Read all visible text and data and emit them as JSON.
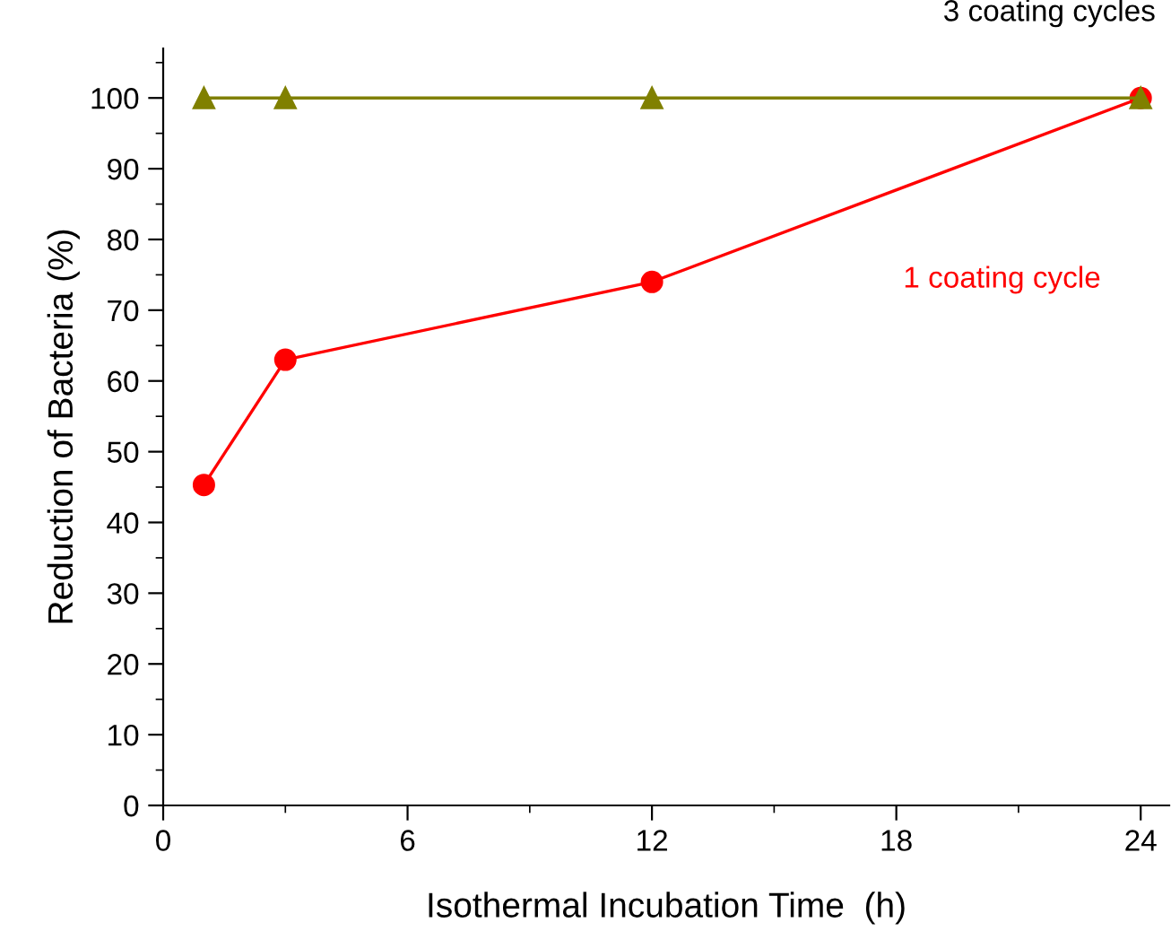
{
  "chart_data": {
    "type": "line",
    "xlabel": "Isothermal Incubation Time  (h)",
    "ylabel": "Reduction of Bacteria (%)",
    "xlim": [
      0,
      24.7
    ],
    "xticks": [
      0,
      6,
      12,
      18,
      24
    ],
    "ylim": [
      0,
      107
    ],
    "yticks": [
      0,
      10,
      20,
      30,
      40,
      50,
      60,
      70,
      80,
      90,
      100
    ],
    "grid": false,
    "legend": false,
    "series": [
      {
        "name": "3 coating cycles",
        "color": "#808000",
        "x": [
          1,
          3,
          12,
          24
        ],
        "values": [
          100,
          100,
          100,
          100
        ],
        "marker": "triangle"
      },
      {
        "name": "1 coating cycle",
        "color": "#ff0000",
        "x": [
          1,
          3,
          12,
          24
        ],
        "values": [
          45.3,
          63,
          74,
          100
        ],
        "marker": "circle"
      }
    ]
  }
}
